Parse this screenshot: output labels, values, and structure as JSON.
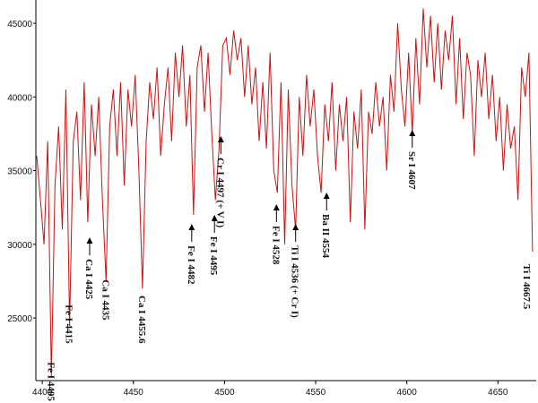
{
  "chart_data": {
    "type": "line",
    "color": "#cc1111",
    "x": [
      4397,
      4399,
      4401,
      4403,
      4405,
      4407,
      4409,
      4411,
      4413,
      4415,
      4417,
      4419,
      4421,
      4423,
      4425,
      4427,
      4429,
      4431,
      4433,
      4435,
      4437,
      4439,
      4441,
      4443,
      4445,
      4447,
      4449,
      4451,
      4453,
      4455,
      4457,
      4459,
      4461,
      4463,
      4465,
      4467,
      4469,
      4471,
      4473,
      4475,
      4477,
      4479,
      4481,
      4483,
      4485,
      4487,
      4489,
      4491,
      4493,
      4495,
      4497,
      4499,
      4501,
      4503,
      4505,
      4507,
      4509,
      4511,
      4513,
      4515,
      4517,
      4519,
      4521,
      4523,
      4525,
      4527,
      4529,
      4531,
      4533,
      4535,
      4537,
      4539,
      4541,
      4543,
      4545,
      4547,
      4549,
      4551,
      4553,
      4555,
      4557,
      4559,
      4561,
      4563,
      4565,
      4567,
      4569,
      4571,
      4573,
      4575,
      4577,
      4579,
      4581,
      4583,
      4585,
      4587,
      4589,
      4591,
      4593,
      4595,
      4597,
      4599,
      4601,
      4603,
      4605,
      4607,
      4609,
      4611,
      4613,
      4615,
      4617,
      4619,
      4621,
      4623,
      4625,
      4627,
      4629,
      4631,
      4633,
      4635,
      4637,
      4639,
      4641,
      4643,
      4645,
      4647,
      4649,
      4651,
      4653,
      4655,
      4657,
      4659,
      4661,
      4663,
      4665,
      4667,
      4669
    ],
    "values": [
      36000,
      33000,
      30000,
      37000,
      21000,
      34000,
      38000,
      31000,
      40500,
      24500,
      37000,
      39000,
      33000,
      41000,
      31500,
      39500,
      36000,
      40000,
      33000,
      27500,
      38000,
      40500,
      36000,
      41000,
      34000,
      40500,
      38000,
      41500,
      35000,
      27000,
      37000,
      41000,
      38500,
      42000,
      36000,
      39500,
      42000,
      37000,
      43000,
      40000,
      43500,
      38000,
      41500,
      32000,
      42000,
      43500,
      39000,
      43000,
      37500,
      33000,
      36500,
      43500,
      44000,
      41500,
      44500,
      42500,
      44000,
      40000,
      43500,
      39500,
      42000,
      37000,
      41000,
      36500,
      43000,
      35000,
      33500,
      41000,
      30000,
      40500,
      34000,
      31000,
      40000,
      36000,
      41500,
      38000,
      40500,
      36000,
      33500,
      39500,
      37000,
      41000,
      35000,
      39500,
      37000,
      40000,
      31500,
      39000,
      36500,
      40500,
      31000,
      39000,
      37500,
      41000,
      38000,
      40000,
      35000,
      41500,
      39000,
      45000,
      40500,
      38000,
      43000,
      37500,
      44000,
      39500,
      46000,
      42000,
      45500,
      41000,
      45000,
      40500,
      44500,
      42500,
      45500,
      39500,
      44000,
      38500,
      43000,
      41500,
      36000,
      42500,
      40000,
      43000,
      38500,
      41500,
      37000,
      40000,
      35000,
      39500,
      36500,
      38000,
      33000,
      42000,
      40000,
      43000,
      29500
    ],
    "xlim": [
      4396.5,
      4671
    ],
    "ylim": [
      20750,
      46580
    ],
    "xticks": [
      4400,
      4450,
      4500,
      4550,
      4600,
      4650
    ],
    "yticks": [
      25000,
      30000,
      35000,
      40000,
      45000
    ],
    "annotations": [
      {
        "text": "Fe I 4405",
        "x": 4405,
        "y": 22000
      },
      {
        "text": "Fe I 4415",
        "x": 4415,
        "y": 25900
      },
      {
        "text": "Ca I 4425",
        "x": 4426,
        "y": 30470,
        "arrow": true
      },
      {
        "text": "Ca I 4435",
        "x": 4435,
        "y": 27600
      },
      {
        "text": "Ca I 4455.6",
        "x": 4455,
        "y": 26520
      },
      {
        "text": "Fe I 4482",
        "x": 4482,
        "y": 31380,
        "arrow": true
      },
      {
        "text": "Fe I 4495",
        "x": 4494.5,
        "y": 32000,
        "arrow": true
      },
      {
        "text": "Cr I 4497 (+ V I)",
        "x": 4498,
        "y": 37340,
        "arrow": true
      },
      {
        "text": "Fe I 4528",
        "x": 4528.5,
        "y": 32720,
        "arrow": true
      },
      {
        "text": "Ti I 4536 (+ Cr I)",
        "x": 4539,
        "y": 31380,
        "arrow": true
      },
      {
        "text": "Ba II 4554",
        "x": 4556,
        "y": 33510,
        "arrow": true
      },
      {
        "text": "Sr I 4607",
        "x": 4603,
        "y": 37770,
        "arrow": true
      },
      {
        "text": "Ti I 4667.5",
        "x": 4666,
        "y": 28650
      }
    ]
  }
}
